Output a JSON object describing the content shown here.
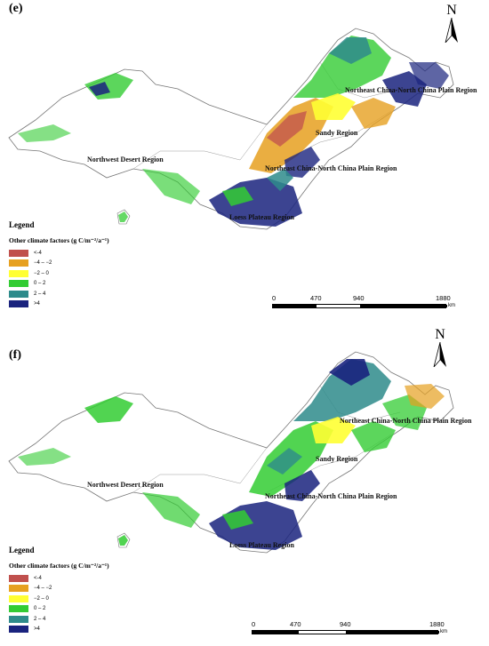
{
  "panels": [
    {
      "label": "(e)",
      "north": "N",
      "regions": [
        "Northeast China-North China Plain Region",
        "Sandy Region",
        "Northwest Desert Region",
        "Northeast China-North China Plain Region",
        "Loess Plateau Region"
      ],
      "legend": {
        "title": "Legend",
        "subtitle": "Other climate factors (g C/m⁻²/a⁻¹)",
        "classes": [
          "<-4",
          "−4 – −2",
          "−2 – 0",
          "0 – 2",
          "2 – 4",
          ">4"
        ]
      },
      "scale": {
        "ticks": [
          "0",
          "470",
          "940",
          "1880"
        ],
        "unit": "km"
      }
    },
    {
      "label": "(f)",
      "north": "N",
      "regions": [
        "Northeast China-North China Plain Region",
        "Sandy Region",
        "Northwest Desert Region",
        "Northeast China-North China Plain Region",
        "Loess Plateau Region"
      ],
      "legend": {
        "title": "Legend",
        "subtitle": "Other climate factors (g C/m⁻²/a⁻¹)",
        "classes": [
          "<-4",
          "−4 – −2",
          "−2 – 0",
          "0 – 2",
          "2 – 4",
          ">4"
        ]
      },
      "scale": {
        "ticks": [
          "0",
          "470",
          "940",
          "1880"
        ],
        "unit": "km"
      }
    }
  ],
  "colors": {
    "class_colors": [
      "#c0504d",
      "#e6a020",
      "#ffff33",
      "#33cc33",
      "#2e8b8b",
      "#1a237e"
    ],
    "outline": "#777777"
  }
}
